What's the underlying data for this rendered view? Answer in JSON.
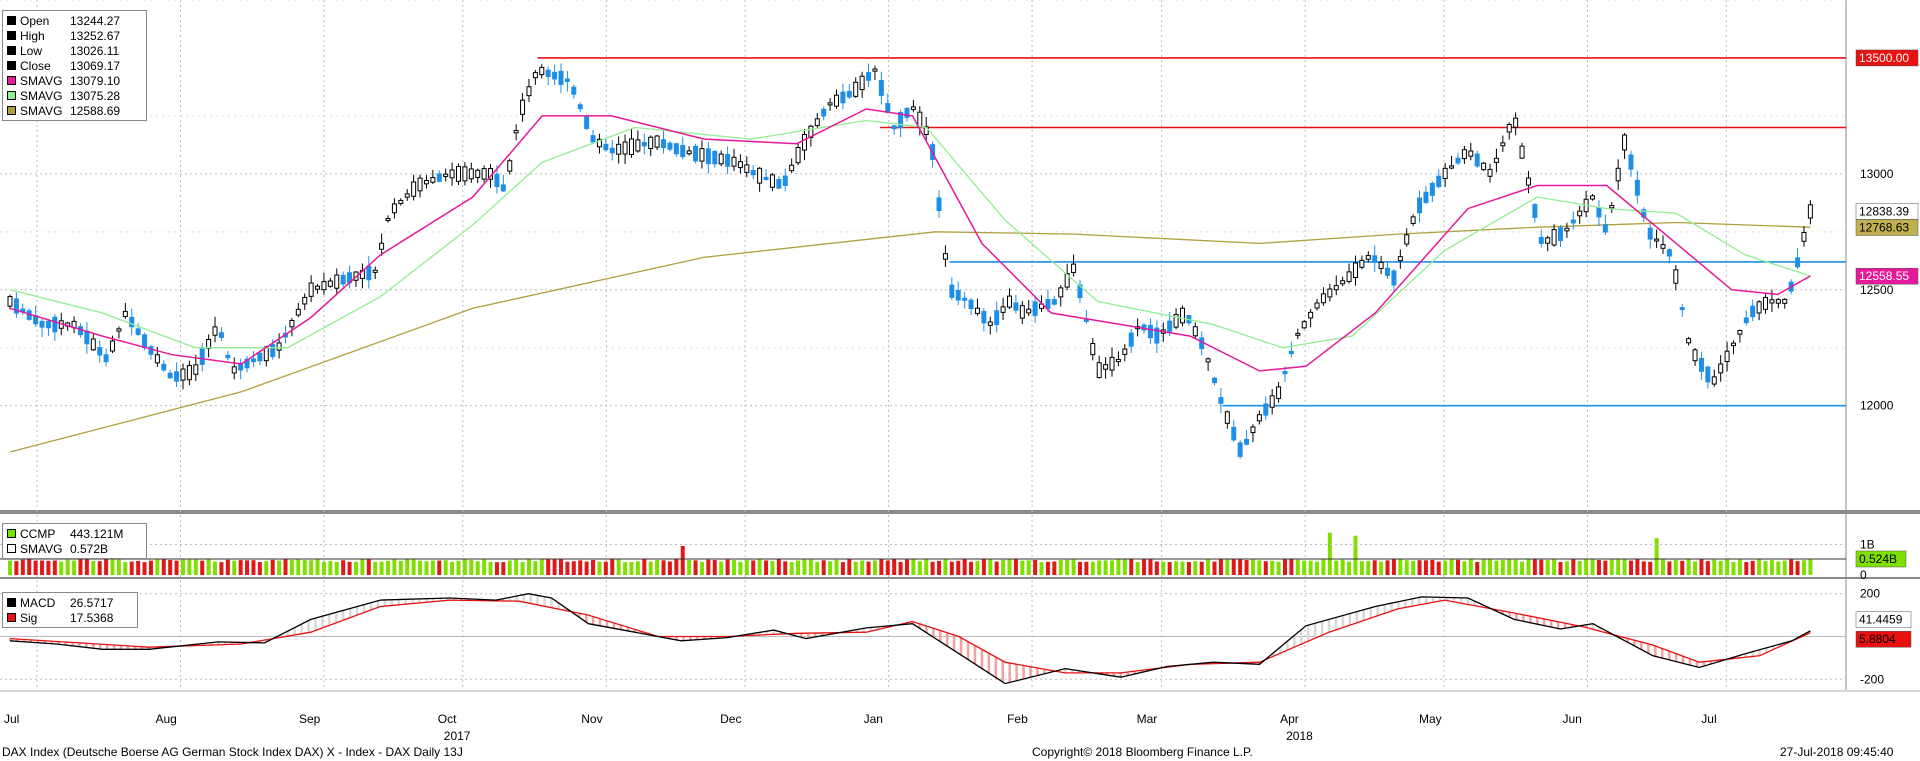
{
  "legend_price": [
    {
      "label": "Open",
      "value": "13244.27",
      "color": "#000000"
    },
    {
      "label": "High",
      "value": "13252.67",
      "color": "#000000"
    },
    {
      "label": "Low",
      "value": "13026.11",
      "color": "#000000"
    },
    {
      "label": "Close",
      "value": "13069.17",
      "color": "#000000"
    },
    {
      "label": "SMAVG",
      "value": "13079.10",
      "color": "#e6199a"
    },
    {
      "label": "SMAVG",
      "value": "13075.28",
      "color": "#8ff08f"
    },
    {
      "label": "SMAVG",
      "value": "12588.69",
      "color": "#b0a040"
    }
  ],
  "legend_volume": [
    {
      "label": "CCMP",
      "value": "443.121M",
      "color": "#6ee600"
    },
    {
      "label": "SMAVG",
      "value": "0.572B",
      "color": "#ffffff"
    }
  ],
  "legend_macd": [
    {
      "label": "MACD",
      "value": "26.5717",
      "color": "#000000"
    },
    {
      "label": "Sig",
      "value": "17.5368",
      "color": "#e81010"
    }
  ],
  "footer": {
    "left": "DAX Index (Deutsche Boerse AG German Stock Index DAX) X - Index - DAX  Daily 13J",
    "center": "Copyright© 2018 Bloomberg Finance L.P.",
    "right": "27-Jul-2018 09:45:40"
  },
  "colors": {
    "up": "#000000",
    "down": "#1e8fe8",
    "vol_up": "#7fe000",
    "vol_down": "#e01818",
    "sma20": "#e6199a",
    "sma50": "#8ff08f",
    "sma200": "#b0a040",
    "macd": "#000000",
    "sig": "#e81010",
    "hline_red": "#e81010",
    "hline_blue": "#1e8fe8"
  },
  "chart_data": [
    {
      "type": "candlestick",
      "panel": "price",
      "ylim": [
        11550,
        13750
      ],
      "y_ticks": [
        12000,
        12500,
        13000
      ],
      "x_tick_labels": [
        "Jul",
        "Aug",
        "Sep",
        "Oct",
        "Nov",
        "Dec",
        "Jan",
        "Feb",
        "Mar",
        "Apr",
        "May",
        "Jun",
        "Jul"
      ],
      "x_tick_days": [
        0,
        31,
        62,
        92,
        123,
        153,
        184,
        215,
        243,
        274,
        304,
        335,
        365
      ],
      "year_labels": [
        {
          "label": "2017",
          "day": 92
        },
        {
          "label": "2018",
          "day": 274
        }
      ],
      "x_domain_days": [
        0,
        390
      ],
      "ohlc_path": [
        [
          0,
          12450
        ],
        [
          7,
          12350
        ],
        [
          14,
          12350
        ],
        [
          21,
          12200
        ],
        [
          25,
          12400
        ],
        [
          30,
          12250
        ],
        [
          35,
          12120
        ],
        [
          40,
          12150
        ],
        [
          45,
          12350
        ],
        [
          48,
          12150
        ],
        [
          53,
          12200
        ],
        [
          58,
          12250
        ],
        [
          65,
          12500
        ],
        [
          73,
          12550
        ],
        [
          79,
          12580
        ],
        [
          82,
          12830
        ],
        [
          88,
          12950
        ],
        [
          95,
          13000
        ],
        [
          104,
          13000
        ],
        [
          107,
          12930
        ],
        [
          110,
          13250
        ],
        [
          114,
          13450
        ],
        [
          121,
          13400
        ],
        [
          126,
          13150
        ],
        [
          130,
          13100
        ],
        [
          135,
          13120
        ],
        [
          140,
          13140
        ],
        [
          145,
          13100
        ],
        [
          150,
          13080
        ],
        [
          157,
          13050
        ],
        [
          161,
          13000
        ],
        [
          167,
          12950
        ],
        [
          172,
          13150
        ],
        [
          177,
          13300
        ],
        [
          182,
          13350
        ],
        [
          187,
          13450
        ],
        [
          191,
          13200
        ],
        [
          195,
          13290
        ],
        [
          199,
          13150
        ],
        [
          203,
          12500
        ],
        [
          207,
          12450
        ],
        [
          212,
          12350
        ],
        [
          216,
          12450
        ],
        [
          219,
          12400
        ],
        [
          223,
          12430
        ],
        [
          226,
          12450
        ],
        [
          230,
          12600
        ],
        [
          235,
          12150
        ],
        [
          240,
          12200
        ],
        [
          244,
          12350
        ],
        [
          248,
          12300
        ],
        [
          254,
          12400
        ],
        [
          258,
          12250
        ],
        [
          262,
          12000
        ],
        [
          266,
          11800
        ],
        [
          270,
          11950
        ],
        [
          274,
          12050
        ],
        [
          278,
          12300
        ],
        [
          283,
          12450
        ],
        [
          289,
          12550
        ],
        [
          294,
          12650
        ],
        [
          299,
          12550
        ],
        [
          304,
          12850
        ],
        [
          310,
          13000
        ],
        [
          315,
          13100
        ],
        [
          320,
          13000
        ],
        [
          325,
          13250
        ],
        [
          331,
          12700
        ],
        [
          336,
          12750
        ],
        [
          342,
          12900
        ],
        [
          345,
          12750
        ],
        [
          349,
          13150
        ],
        [
          354,
          12750
        ],
        [
          359,
          12650
        ],
        [
          363,
          12250
        ],
        [
          368,
          12100
        ],
        [
          372,
          12250
        ],
        [
          376,
          12400
        ],
        [
          380,
          12450
        ],
        [
          384,
          12450
        ],
        [
          386,
          12600
        ],
        [
          389,
          12838
        ]
      ],
      "sma20_path": [
        [
          0,
          12420
        ],
        [
          20,
          12300
        ],
        [
          35,
          12220
        ],
        [
          50,
          12180
        ],
        [
          65,
          12380
        ],
        [
          80,
          12650
        ],
        [
          100,
          12900
        ],
        [
          115,
          13250
        ],
        [
          130,
          13250
        ],
        [
          150,
          13150
        ],
        [
          170,
          13130
        ],
        [
          185,
          13280
        ],
        [
          195,
          13250
        ],
        [
          210,
          12700
        ],
        [
          225,
          12400
        ],
        [
          240,
          12350
        ],
        [
          255,
          12300
        ],
        [
          270,
          12150
        ],
        [
          280,
          12170
        ],
        [
          295,
          12400
        ],
        [
          315,
          12850
        ],
        [
          330,
          12950
        ],
        [
          345,
          12950
        ],
        [
          360,
          12700
        ],
        [
          372,
          12500
        ],
        [
          382,
          12480
        ],
        [
          389,
          12560
        ]
      ],
      "sma50_path": [
        [
          0,
          12500
        ],
        [
          20,
          12400
        ],
        [
          40,
          12250
        ],
        [
          60,
          12250
        ],
        [
          80,
          12470
        ],
        [
          100,
          12780
        ],
        [
          115,
          13050
        ],
        [
          135,
          13200
        ],
        [
          160,
          13150
        ],
        [
          185,
          13230
        ],
        [
          198,
          13200
        ],
        [
          215,
          12800
        ],
        [
          235,
          12450
        ],
        [
          260,
          12350
        ],
        [
          275,
          12250
        ],
        [
          290,
          12300
        ],
        [
          310,
          12670
        ],
        [
          330,
          12900
        ],
        [
          345,
          12850
        ],
        [
          360,
          12830
        ],
        [
          375,
          12650
        ],
        [
          389,
          12560
        ]
      ],
      "sma200_path": [
        [
          0,
          11800
        ],
        [
          50,
          12060
        ],
        [
          100,
          12420
        ],
        [
          150,
          12640
        ],
        [
          200,
          12750
        ],
        [
          230,
          12740
        ],
        [
          270,
          12700
        ],
        [
          300,
          12740
        ],
        [
          330,
          12770
        ],
        [
          360,
          12790
        ],
        [
          389,
          12770
        ]
      ],
      "hlines": [
        {
          "value": 13500,
          "color": "red",
          "start_day": 114,
          "tag": "13500.00"
        },
        {
          "value": 13200,
          "color": "red",
          "start_day": 188
        },
        {
          "value": 12620,
          "color": "blue",
          "start_day": 203
        },
        {
          "value": 12000,
          "color": "blue",
          "start_day": 262
        }
      ],
      "right_tags": [
        {
          "value": 13500,
          "label": "13500.00",
          "bg": "#e81010",
          "fg": "#ffffff"
        },
        {
          "value": 12838.39,
          "label": "12838.39",
          "bg": "#ffffff",
          "fg": "#000000"
        },
        {
          "value": 12768.63,
          "label": "12768.63",
          "bg": "#c0b050",
          "fg": "#000000"
        },
        {
          "value": 12558.55,
          "label": "12558.55",
          "bg": "#e6199a",
          "fg": "#ffffff"
        }
      ]
    },
    {
      "type": "bar",
      "panel": "volume",
      "series_name": "CCMP",
      "ylim": [
        0,
        1.8
      ],
      "y_ticks": [
        {
          "value": 1,
          "label": "1B"
        },
        {
          "value": 0,
          "label": "0"
        }
      ],
      "smavg_value": 0.524,
      "smavg_label": "0.524B"
    },
    {
      "type": "line",
      "panel": "macd",
      "ylim": [
        -250,
        250
      ],
      "y_ticks": [
        200,
        -200
      ],
      "macd_path": [
        [
          0,
          -20
        ],
        [
          10,
          -35
        ],
        [
          20,
          -60
        ],
        [
          30,
          -60
        ],
        [
          45,
          -25
        ],
        [
          55,
          -30
        ],
        [
          65,
          80
        ],
        [
          80,
          170
        ],
        [
          95,
          180
        ],
        [
          105,
          170
        ],
        [
          112,
          200
        ],
        [
          117,
          180
        ],
        [
          125,
          60
        ],
        [
          135,
          20
        ],
        [
          145,
          -20
        ],
        [
          155,
          -5
        ],
        [
          165,
          30
        ],
        [
          172,
          -10
        ],
        [
          185,
          40
        ],
        [
          195,
          60
        ],
        [
          205,
          -80
        ],
        [
          215,
          -220
        ],
        [
          228,
          -150
        ],
        [
          240,
          -190
        ],
        [
          250,
          -140
        ],
        [
          260,
          -120
        ],
        [
          270,
          -130
        ],
        [
          280,
          50
        ],
        [
          295,
          140
        ],
        [
          305,
          185
        ],
        [
          315,
          180
        ],
        [
          325,
          80
        ],
        [
          335,
          35
        ],
        [
          342,
          60
        ],
        [
          355,
          -90
        ],
        [
          365,
          -145
        ],
        [
          375,
          -80
        ],
        [
          385,
          -20
        ],
        [
          389,
          26.57
        ]
      ],
      "sig_path": [
        [
          0,
          -10
        ],
        [
          15,
          -30
        ],
        [
          30,
          -50
        ],
        [
          50,
          -35
        ],
        [
          65,
          20
        ],
        [
          80,
          140
        ],
        [
          95,
          170
        ],
        [
          110,
          165
        ],
        [
          125,
          100
        ],
        [
          140,
          0
        ],
        [
          155,
          0
        ],
        [
          170,
          15
        ],
        [
          185,
          20
        ],
        [
          195,
          70
        ],
        [
          205,
          0
        ],
        [
          215,
          -120
        ],
        [
          228,
          -170
        ],
        [
          240,
          -170
        ],
        [
          255,
          -130
        ],
        [
          270,
          -120
        ],
        [
          285,
          20
        ],
        [
          300,
          130
        ],
        [
          310,
          170
        ],
        [
          325,
          110
        ],
        [
          340,
          45
        ],
        [
          355,
          -40
        ],
        [
          365,
          -120
        ],
        [
          378,
          -90
        ],
        [
          389,
          17.54
        ]
      ],
      "right_tags": [
        {
          "value": 41.45,
          "label": "41.4459",
          "bg": "#ffffff",
          "fg": "#000000"
        },
        {
          "value": 5.88,
          "label": "5.8804",
          "bg": "#e81010",
          "fg": "#000000"
        }
      ]
    }
  ]
}
